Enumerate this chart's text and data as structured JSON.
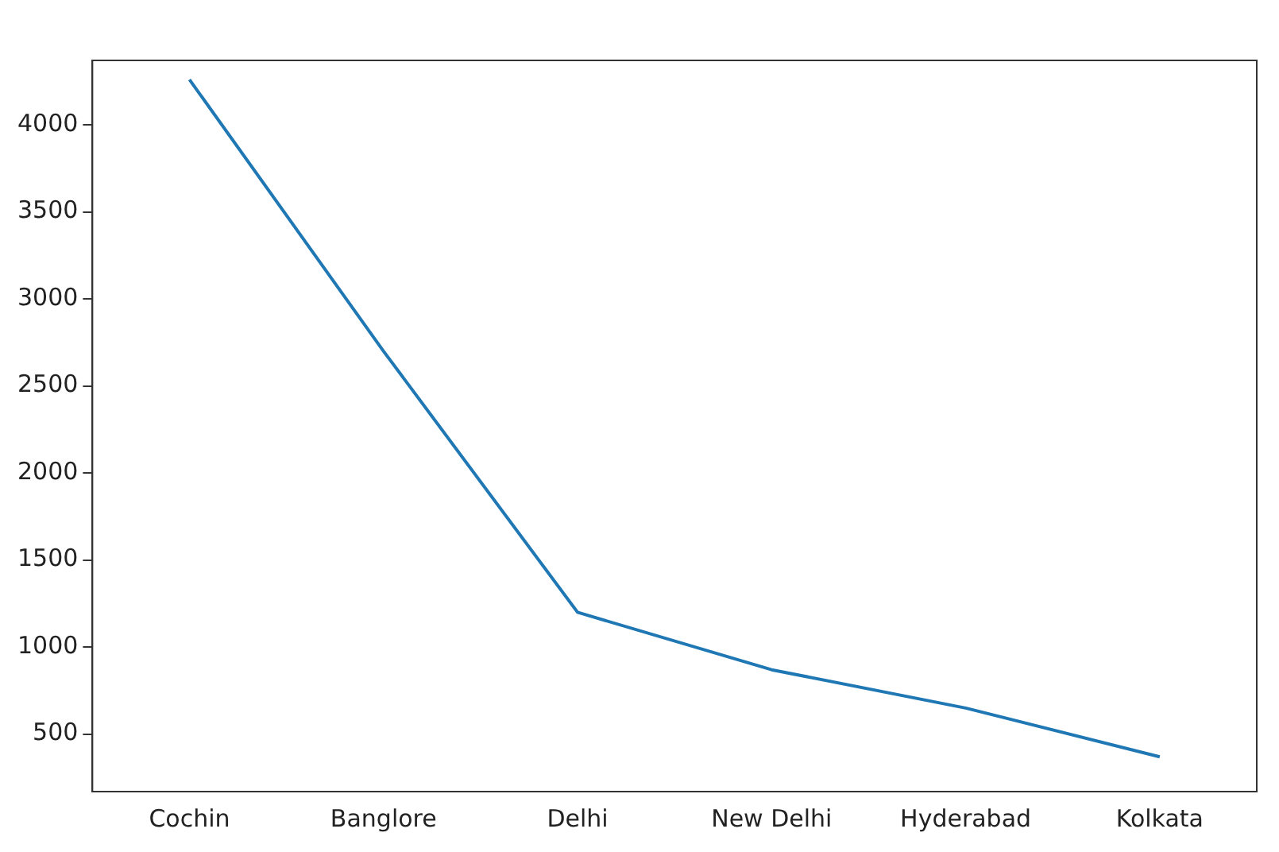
{
  "chart_data": {
    "type": "line",
    "categories": [
      "Cochin",
      "Banglore",
      "Delhi",
      "New Delhi",
      "Hyderabad",
      "Kolkata"
    ],
    "series": [
      {
        "color": "#1f77b4",
        "values": [
          4260,
          2700,
          1200,
          870,
          650,
          370
        ]
      }
    ],
    "ylim": [
      170,
      4370
    ],
    "yticks": [
      500,
      1000,
      1500,
      2000,
      2500,
      3000,
      3500,
      4000
    ],
    "grid": false,
    "legend": false,
    "marker": "none",
    "line_style": "solid"
  }
}
